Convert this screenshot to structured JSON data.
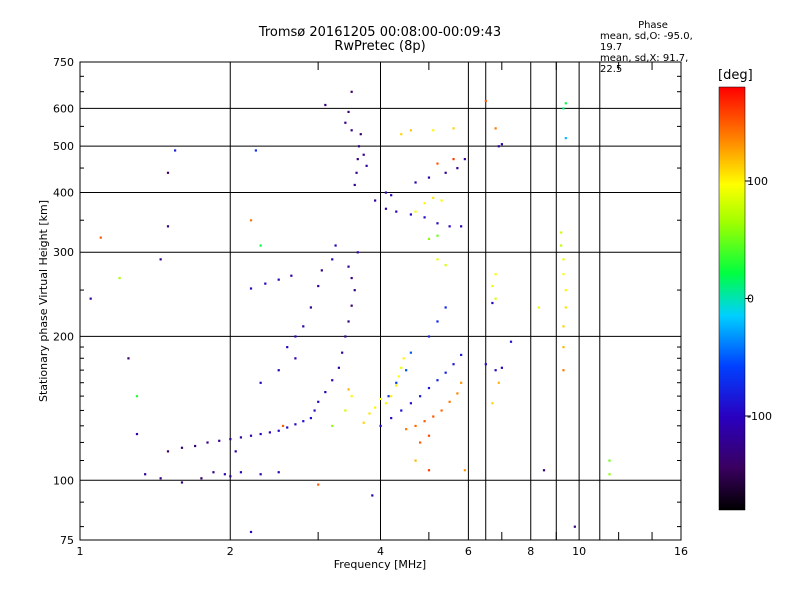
{
  "title": {
    "line1": "Tromsø 20161205 00:08:00-00:09:43",
    "line2": "RwPretec (8p)"
  },
  "stats": {
    "heading": "Phase",
    "line_o": "mean, sd,O: -95.0, 19.7",
    "line_x": "mean, sd,X:  91.7, 22.5"
  },
  "colorbar": {
    "label": "[deg]",
    "ticks": [
      "100",
      "0",
      "-100"
    ],
    "tick_values": [
      100,
      0,
      -100
    ],
    "range": [
      -180,
      180
    ]
  },
  "chart_data": {
    "type": "scatter",
    "xlabel": "Frequency [MHz]",
    "ylabel": "Stationary phase Virtual Height [km]",
    "x_scale": "log",
    "y_scale": "log",
    "xlim": [
      1,
      16
    ],
    "ylim": [
      75,
      750
    ],
    "x_ticks": [
      1,
      2,
      4,
      6,
      8,
      10,
      16
    ],
    "x_tick_labels": [
      "1",
      "2",
      "4",
      "6",
      "8",
      "10",
      "16"
    ],
    "y_ticks": [
      75,
      100,
      200,
      300,
      400,
      500,
      600,
      750
    ],
    "y_tick_labels": [
      "75",
      "100",
      "200",
      "300",
      "400",
      "500",
      "600",
      "750"
    ],
    "grid": true,
    "color_scale": "rainbow",
    "series": [
      {
        "values": [
          [
            1.35,
            103,
            -120
          ],
          [
            1.45,
            101,
            -130
          ],
          [
            1.6,
            99,
            -135
          ],
          [
            1.75,
            101,
            -140
          ],
          [
            1.85,
            104,
            -125
          ],
          [
            1.95,
            103,
            -110
          ],
          [
            2.0,
            102,
            -120
          ],
          [
            2.1,
            104,
            -105
          ],
          [
            2.3,
            103,
            -115
          ],
          [
            2.5,
            104,
            -110
          ],
          [
            1.5,
            115,
            -140
          ],
          [
            1.6,
            117,
            -138
          ],
          [
            1.7,
            118,
            -135
          ],
          [
            1.8,
            120,
            -130
          ],
          [
            1.9,
            121,
            -125
          ],
          [
            2.0,
            122,
            -120
          ],
          [
            2.1,
            123,
            -115
          ],
          [
            2.2,
            124,
            -110
          ],
          [
            2.3,
            125,
            -105
          ],
          [
            2.4,
            126,
            -100
          ],
          [
            2.5,
            127,
            -100
          ],
          [
            2.6,
            129,
            -95
          ],
          [
            2.7,
            131,
            -95
          ],
          [
            2.8,
            133,
            -90
          ],
          [
            2.9,
            135,
            -90
          ],
          [
            2.95,
            140,
            -95
          ],
          [
            3.0,
            146,
            -100
          ],
          [
            3.1,
            153,
            -105
          ],
          [
            3.2,
            162,
            -110
          ],
          [
            3.3,
            172,
            -115
          ],
          [
            3.35,
            185,
            -120
          ],
          [
            3.4,
            200,
            -125
          ],
          [
            3.45,
            215,
            -130
          ],
          [
            3.5,
            232,
            -135
          ],
          [
            3.55,
            250,
            -130
          ],
          [
            3.5,
            265,
            -125
          ],
          [
            3.45,
            280,
            -120
          ],
          [
            2.8,
            210,
            -110
          ],
          [
            2.9,
            230,
            -115
          ],
          [
            3.0,
            255,
            -120
          ],
          [
            3.05,
            275,
            -125
          ],
          [
            2.6,
            190,
            -100
          ],
          [
            2.7,
            200,
            -105
          ],
          [
            2.2,
            252,
            -95
          ],
          [
            2.35,
            258,
            -100
          ],
          [
            2.5,
            263,
            -105
          ],
          [
            2.65,
            268,
            -110
          ],
          [
            3.6,
            470,
            -130
          ],
          [
            3.62,
            500,
            -135
          ],
          [
            3.65,
            530,
            -140
          ],
          [
            3.58,
            440,
            -125
          ],
          [
            3.55,
            415,
            -120
          ],
          [
            3.9,
            385,
            -115
          ],
          [
            4.1,
            370,
            -110
          ],
          [
            4.3,
            365,
            -105
          ],
          [
            4.6,
            360,
            -100
          ],
          [
            4.9,
            355,
            -95
          ],
          [
            5.2,
            345,
            -95
          ],
          [
            5.5,
            340,
            -100
          ],
          [
            5.8,
            340,
            -105
          ],
          [
            4.7,
            420,
            -110
          ],
          [
            5.0,
            430,
            -115
          ],
          [
            5.4,
            440,
            -120
          ],
          [
            5.7,
            450,
            -120
          ],
          [
            5.9,
            470,
            -115
          ],
          [
            3.1,
            610,
            -130
          ],
          [
            3.5,
            650,
            -140
          ],
          [
            4.0,
            130,
            -100
          ],
          [
            4.2,
            135,
            -95
          ],
          [
            4.4,
            140,
            -90
          ],
          [
            4.6,
            145,
            -90
          ],
          [
            4.8,
            150,
            -85
          ],
          [
            5.0,
            156,
            -85
          ],
          [
            5.2,
            162,
            -80
          ],
          [
            5.4,
            168,
            -80
          ],
          [
            5.6,
            175,
            -85
          ],
          [
            5.8,
            183,
            -85
          ],
          [
            5.0,
            200,
            -80
          ],
          [
            5.2,
            215,
            -75
          ],
          [
            5.4,
            230,
            -75
          ],
          [
            6.5,
            175,
            -95
          ],
          [
            6.8,
            170,
            -100
          ],
          [
            7.0,
            172,
            -105
          ],
          [
            7.3,
            195,
            -90
          ],
          [
            6.7,
            235,
            -100
          ],
          [
            7.0,
            505,
            -110
          ],
          [
            6.9,
            500,
            -115
          ],
          [
            1.25,
            180,
            -140
          ],
          [
            1.3,
            125,
            -110
          ],
          [
            1.55,
            490,
            -80
          ],
          [
            2.25,
            490,
            -70
          ],
          [
            3.85,
            93,
            -110
          ],
          [
            2.2,
            78,
            -100
          ],
          [
            9.8,
            80,
            -130
          ],
          [
            8.5,
            105,
            -130
          ],
          [
            3.5,
            540,
            -125
          ],
          [
            3.4,
            560,
            -130
          ],
          [
            3.45,
            590,
            -135
          ],
          [
            3.7,
            480,
            -120
          ],
          [
            3.75,
            455,
            -115
          ],
          [
            4.1,
            400,
            -110
          ],
          [
            4.2,
            395,
            -105
          ],
          [
            2.3,
            160,
            -100
          ],
          [
            2.5,
            170,
            -105
          ],
          [
            2.7,
            180,
            -110
          ],
          [
            1.05,
            240,
            -110
          ],
          [
            1.5,
            340,
            -130
          ],
          [
            1.45,
            290,
            -125
          ],
          [
            1.5,
            440,
            -140
          ],
          [
            2.05,
            115,
            -115
          ],
          [
            3.2,
            290,
            -100
          ],
          [
            3.25,
            310,
            -105
          ],
          [
            3.6,
            300,
            -110
          ],
          [
            4.15,
            150,
            -70
          ],
          [
            4.3,
            160,
            -60
          ],
          [
            4.5,
            170,
            -55
          ],
          [
            4.6,
            185,
            -50
          ]
        ]
      },
      {
        "values": [
          [
            4.1,
            145,
            95
          ],
          [
            4.2,
            150,
            100
          ],
          [
            4.3,
            158,
            105
          ],
          [
            4.35,
            165,
            95
          ],
          [
            4.4,
            172,
            90
          ],
          [
            4.45,
            180,
            100
          ],
          [
            3.7,
            132,
            110
          ],
          [
            3.8,
            138,
            105
          ],
          [
            3.9,
            142,
            100
          ],
          [
            4.0,
            148,
            95
          ],
          [
            4.5,
            128,
            140
          ],
          [
            4.7,
            130,
            145
          ],
          [
            4.9,
            133,
            150
          ],
          [
            5.1,
            136,
            150
          ],
          [
            5.3,
            140,
            145
          ],
          [
            5.5,
            146,
            140
          ],
          [
            5.7,
            152,
            135
          ],
          [
            5.8,
            160,
            130
          ],
          [
            4.8,
            120,
            150
          ],
          [
            5.0,
            124,
            155
          ],
          [
            4.7,
            365,
            95
          ],
          [
            4.9,
            380,
            100
          ],
          [
            5.1,
            390,
            105
          ],
          [
            5.3,
            385,
            95
          ],
          [
            5.0,
            320,
            60
          ],
          [
            5.2,
            325,
            50
          ],
          [
            4.4,
            530,
            110
          ],
          [
            4.6,
            540,
            115
          ],
          [
            5.1,
            540,
            100
          ],
          [
            5.6,
            545,
            110
          ],
          [
            5.2,
            460,
            150
          ],
          [
            5.6,
            470,
            160
          ],
          [
            5.2,
            290,
            90
          ],
          [
            5.4,
            282,
            85
          ],
          [
            6.8,
            270,
            95
          ],
          [
            6.7,
            255,
            90
          ],
          [
            6.8,
            240,
            85
          ],
          [
            6.9,
            160,
            120
          ],
          [
            6.7,
            145,
            110
          ],
          [
            6.5,
            622,
            150
          ],
          [
            6.8,
            545,
            140
          ],
          [
            9.2,
            330,
            80
          ],
          [
            9.2,
            310,
            75
          ],
          [
            9.3,
            290,
            90
          ],
          [
            9.3,
            270,
            95
          ],
          [
            9.4,
            250,
            100
          ],
          [
            9.4,
            230,
            105
          ],
          [
            9.3,
            210,
            110
          ],
          [
            9.3,
            190,
            120
          ],
          [
            9.3,
            170,
            140
          ],
          [
            8.3,
            230,
            90
          ],
          [
            11.5,
            110,
            50
          ],
          [
            11.5,
            103,
            60
          ],
          [
            5.9,
            105,
            130
          ],
          [
            5.0,
            105,
            160
          ],
          [
            2.2,
            350,
            140
          ],
          [
            2.3,
            310,
            20
          ],
          [
            3.0,
            98,
            150
          ],
          [
            1.1,
            322,
            150
          ],
          [
            1.2,
            265,
            70
          ],
          [
            3.2,
            130,
            60
          ],
          [
            3.4,
            140,
            80
          ],
          [
            3.5,
            150,
            100
          ],
          [
            3.45,
            155,
            120
          ],
          [
            9.4,
            520,
            -20
          ],
          [
            9.3,
            600,
            10
          ],
          [
            9.4,
            615,
            20
          ],
          [
            1.3,
            150,
            30
          ],
          [
            4.7,
            110,
            120
          ],
          [
            2.55,
            130,
            150
          ]
        ]
      }
    ]
  }
}
